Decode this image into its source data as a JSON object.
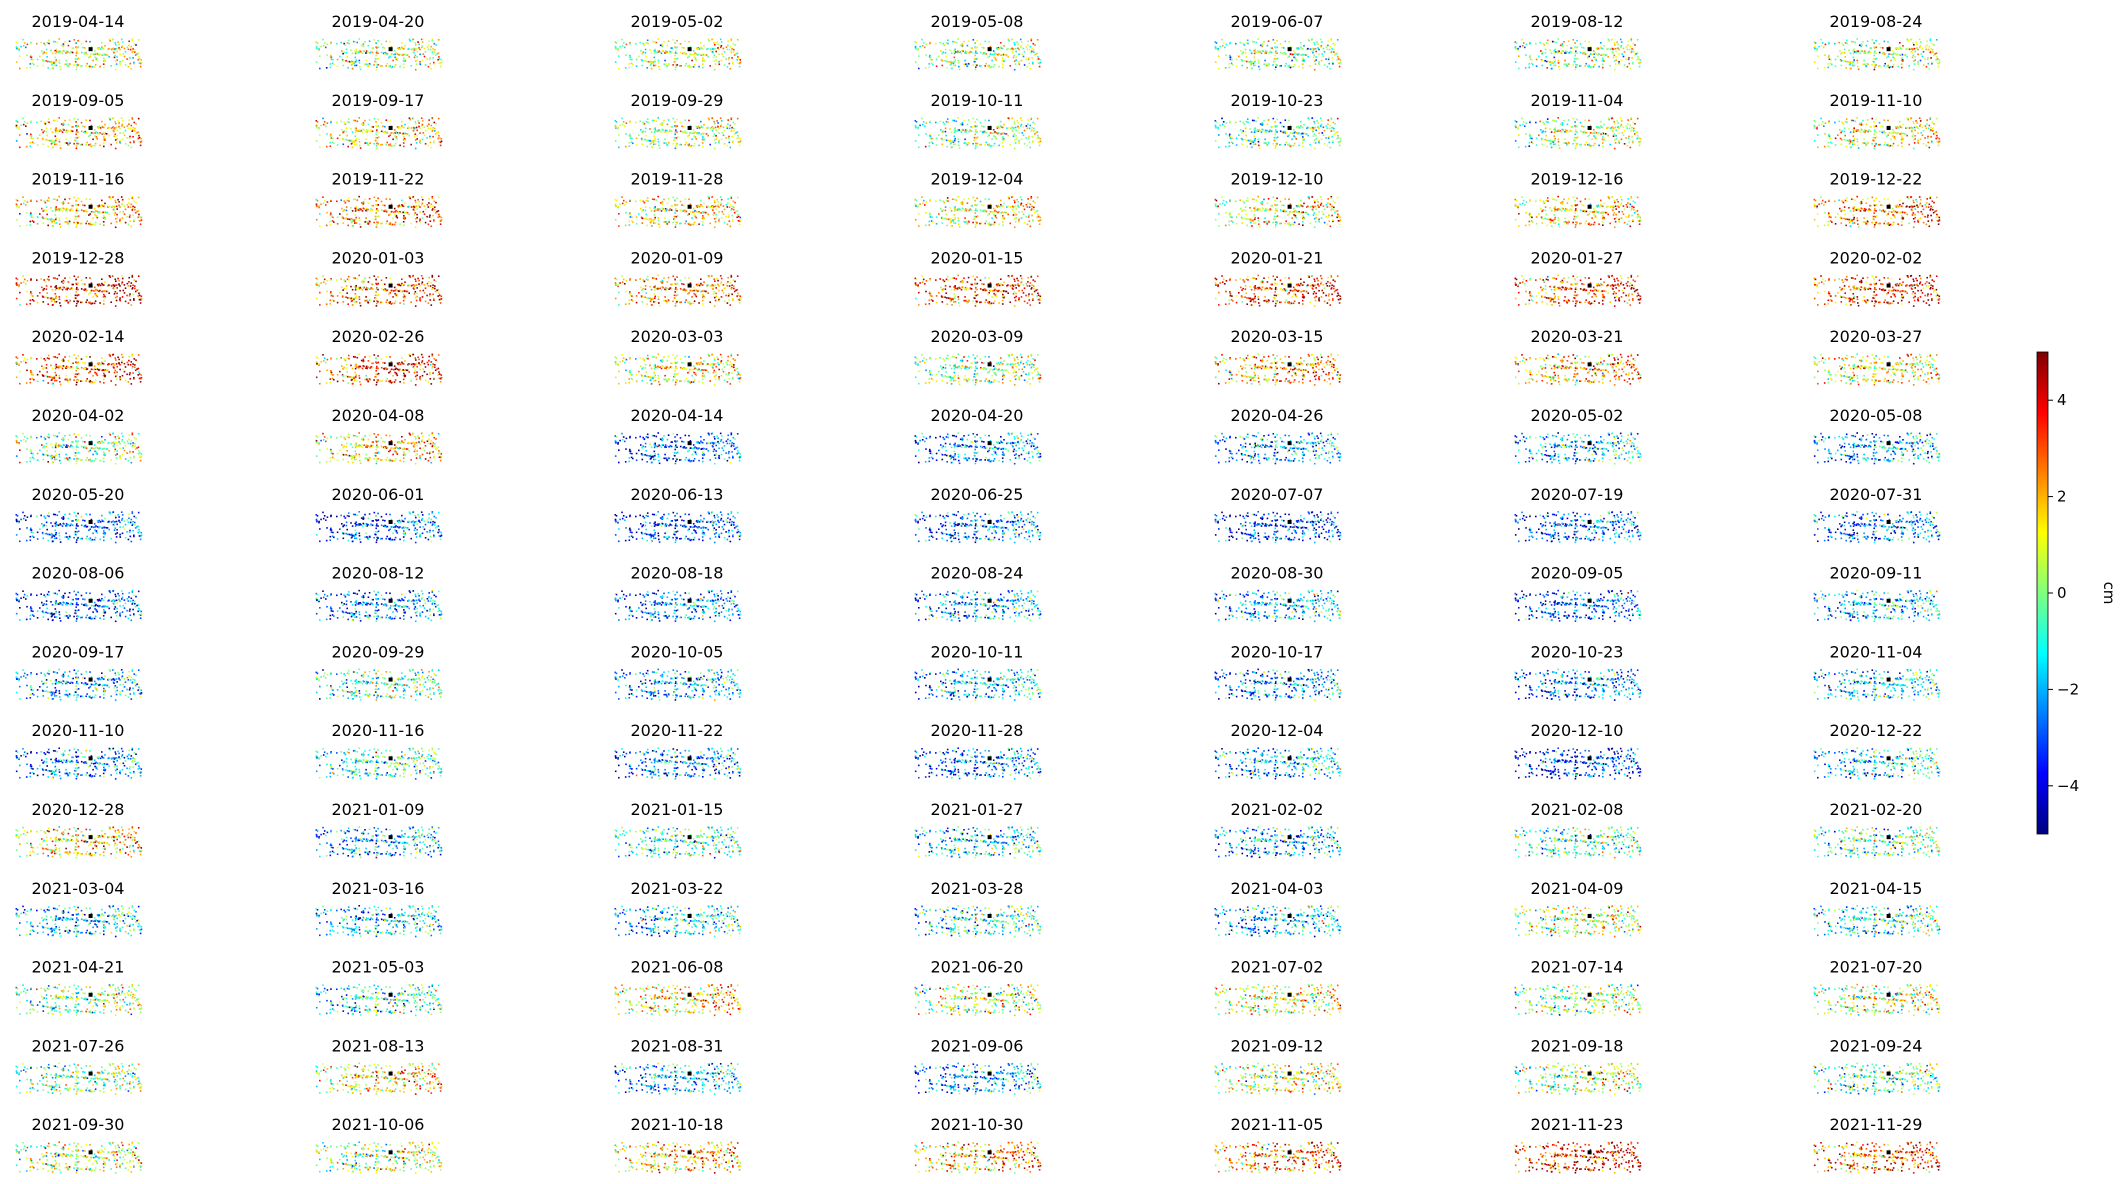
{
  "chart_data": {
    "type": "scatter",
    "layout": "small-multiples grid, 15 rows x 7 columns of displacement scatter maps with a shared colorbar",
    "panel_titles": [
      "2019-04-14",
      "2019-04-20",
      "2019-05-02",
      "2019-05-08",
      "2019-06-07",
      "2019-08-12",
      "2019-08-24",
      "2019-09-05",
      "2019-09-17",
      "2019-09-29",
      "2019-10-11",
      "2019-10-23",
      "2019-11-04",
      "2019-11-10",
      "2019-11-16",
      "2019-11-22",
      "2019-11-28",
      "2019-12-04",
      "2019-12-10",
      "2019-12-16",
      "2019-12-22",
      "2019-12-28",
      "2020-01-03",
      "2020-01-09",
      "2020-01-15",
      "2020-01-21",
      "2020-01-27",
      "2020-02-02",
      "2020-02-14",
      "2020-02-26",
      "2020-03-03",
      "2020-03-09",
      "2020-03-15",
      "2020-03-21",
      "2020-03-27",
      "2020-04-02",
      "2020-04-08",
      "2020-04-14",
      "2020-04-20",
      "2020-04-26",
      "2020-05-02",
      "2020-05-08",
      "2020-05-20",
      "2020-06-01",
      "2020-06-13",
      "2020-06-25",
      "2020-07-07",
      "2020-07-19",
      "2020-07-31",
      "2020-08-06",
      "2020-08-12",
      "2020-08-18",
      "2020-08-24",
      "2020-08-30",
      "2020-09-05",
      "2020-09-11",
      "2020-09-17",
      "2020-09-29",
      "2020-10-05",
      "2020-10-11",
      "2020-10-17",
      "2020-10-23",
      "2020-11-04",
      "2020-11-10",
      "2020-11-16",
      "2020-11-22",
      "2020-11-28",
      "2020-12-04",
      "2020-12-10",
      "2020-12-22",
      "2020-12-28",
      "2021-01-09",
      "2021-01-15",
      "2021-01-27",
      "2021-02-02",
      "2021-02-08",
      "2021-02-20",
      "2021-03-04",
      "2021-03-16",
      "2021-03-22",
      "2021-03-28",
      "2021-04-03",
      "2021-04-09",
      "2021-04-15",
      "2021-04-21",
      "2021-05-03",
      "2021-06-08",
      "2021-06-20",
      "2021-07-02",
      "2021-07-14",
      "2021-07-20",
      "2021-07-26",
      "2021-08-13",
      "2021-08-31",
      "2021-09-06",
      "2021-09-12",
      "2021-09-18",
      "2021-09-24",
      "2021-09-30",
      "2021-10-06",
      "2021-10-18",
      "2021-10-30",
      "2021-11-05",
      "2021-11-23",
      "2021-11-29"
    ],
    "panel_mean_displacement_cm": [
      0.8,
      0.5,
      0.6,
      0.2,
      0.0,
      0.3,
      0.4,
      1.8,
      1.2,
      0.6,
      0.2,
      -0.5,
      0.3,
      1.0,
      2.0,
      2.5,
      1.5,
      1.0,
      1.2,
      1.5,
      2.5,
      3.5,
      3.0,
      2.5,
      3.0,
      3.0,
      3.0,
      3.5,
      3.0,
      3.0,
      1.0,
      0.5,
      2.0,
      2.0,
      1.0,
      0.0,
      1.5,
      -3.0,
      -2.5,
      -2.0,
      -1.5,
      -2.0,
      -3.0,
      -3.0,
      -3.0,
      -2.5,
      -3.5,
      -3.0,
      -2.5,
      -3.0,
      -2.5,
      -2.5,
      -2.0,
      -2.0,
      -3.0,
      -2.0,
      -2.0,
      -0.5,
      -2.0,
      -2.0,
      -2.5,
      -2.5,
      -1.5,
      -2.5,
      -1.0,
      -2.5,
      -2.5,
      -2.0,
      -3.5,
      -1.5,
      1.5,
      -2.0,
      -1.0,
      -1.5,
      -2.0,
      -0.5,
      -0.5,
      -2.0,
      -1.5,
      -1.5,
      -1.0,
      -2.0,
      0.5,
      -1.0,
      0.0,
      -1.0,
      1.5,
      0.5,
      1.0,
      0.0,
      0.5,
      0.0,
      1.5,
      -2.0,
      -2.5,
      1.0,
      0.5,
      -0.5,
      0.5,
      0.5,
      2.0,
      2.0,
      2.5,
      3.5,
      3.0
    ],
    "colorbar": {
      "colormap": "jet",
      "range": [
        -5,
        5
      ],
      "ticks": [
        "4",
        "2",
        "0",
        "−2",
        "−4"
      ],
      "label": "cm",
      "colors": [
        "#00007f",
        "#0000ff",
        "#007fff",
        "#00ffff",
        "#7fff7f",
        "#ffff00",
        "#ff7f00",
        "#ff0000",
        "#7f0000"
      ]
    },
    "reference_point_color": "#000000"
  }
}
